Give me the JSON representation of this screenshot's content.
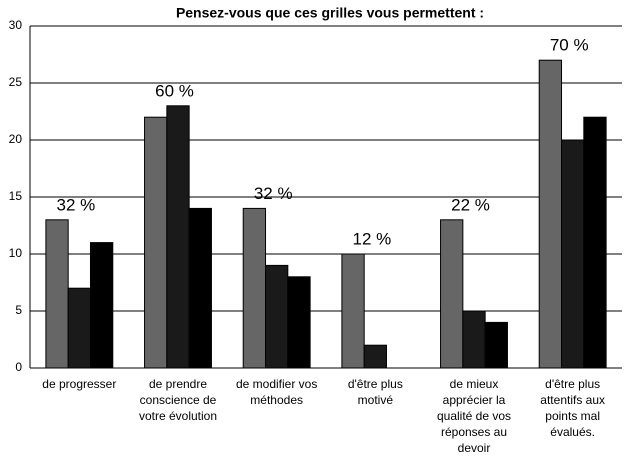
{
  "chart_data": {
    "type": "bar",
    "title": "Pensez-vous que ces grilles vous permettent :",
    "categories": [
      "de progresser",
      "de prendre conscience de votre évolution",
      "de modifier vos méthodes",
      "d'être plus motivé",
      "de mieux apprécier la qualité de vos réponses au devoir",
      "d'être plus attentifs aux points mal évalués."
    ],
    "group_labels": [
      "32 %",
      "60 %",
      "32 %",
      "12 %",
      "22 %",
      "70 %"
    ],
    "series": [
      {
        "color": "#666666",
        "values": [
          13,
          22,
          14,
          10,
          13,
          27
        ]
      },
      {
        "color": "#1a1a1a",
        "values": [
          7,
          23,
          9,
          2,
          5,
          20
        ]
      },
      {
        "color": "#000000",
        "values": [
          11,
          14,
          8,
          0,
          4,
          22
        ]
      }
    ],
    "ylim": [
      0,
      30
    ],
    "yticks": [
      0,
      5,
      10,
      15,
      20,
      25,
      30
    ],
    "grid": true
  }
}
